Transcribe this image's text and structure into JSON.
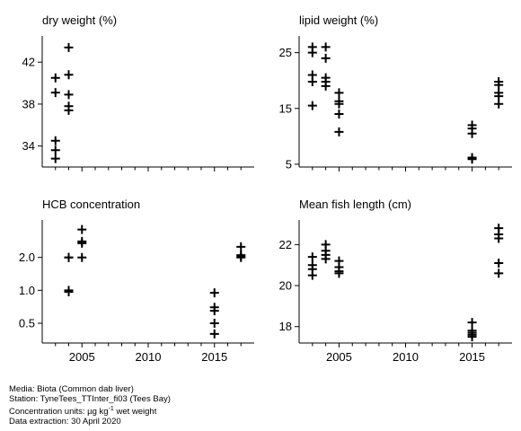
{
  "chart_data": [
    {
      "type": "scatter",
      "title": "dry weight (%)",
      "xlim": [
        2002,
        2018
      ],
      "ylim": [
        32,
        44.5
      ],
      "yticks": [
        34,
        38,
        42
      ],
      "ytick_labels": [
        "34",
        "38",
        "42"
      ],
      "xticks": [
        2005,
        2010,
        2015
      ],
      "xtick_labels": [],
      "points": [
        {
          "x": 2003,
          "y": 40.5
        },
        {
          "x": 2003,
          "y": 39.1
        },
        {
          "x": 2003,
          "y": 34.5
        },
        {
          "x": 2003,
          "y": 33.6
        },
        {
          "x": 2003,
          "y": 32.8
        },
        {
          "x": 2004,
          "y": 43.4
        },
        {
          "x": 2004,
          "y": 40.8
        },
        {
          "x": 2004,
          "y": 38.9
        },
        {
          "x": 2004,
          "y": 37.8
        },
        {
          "x": 2004,
          "y": 37.4
        }
      ]
    },
    {
      "type": "scatter",
      "title": "lipid weight (%)",
      "xlim": [
        2002,
        2018
      ],
      "ylim": [
        4.5,
        28
      ],
      "yticks": [
        5,
        15,
        25
      ],
      "ytick_labels": [
        "5",
        "15",
        "25"
      ],
      "xticks": [
        2005,
        2010,
        2015
      ],
      "xtick_labels": [],
      "points": [
        {
          "x": 2003,
          "y": 26
        },
        {
          "x": 2003,
          "y": 25
        },
        {
          "x": 2003,
          "y": 21
        },
        {
          "x": 2003,
          "y": 19.8
        },
        {
          "x": 2003,
          "y": 15.5
        },
        {
          "x": 2004,
          "y": 26
        },
        {
          "x": 2004,
          "y": 24
        },
        {
          "x": 2004,
          "y": 20.5
        },
        {
          "x": 2004,
          "y": 19.8
        },
        {
          "x": 2004,
          "y": 19
        },
        {
          "x": 2005,
          "y": 17.8
        },
        {
          "x": 2005,
          "y": 16.3
        },
        {
          "x": 2005,
          "y": 15.8
        },
        {
          "x": 2005,
          "y": 14
        },
        {
          "x": 2005,
          "y": 10.8
        },
        {
          "x": 2015,
          "y": 12
        },
        {
          "x": 2015,
          "y": 11.4
        },
        {
          "x": 2015,
          "y": 10.5
        },
        {
          "x": 2015,
          "y": 6.2
        },
        {
          "x": 2015,
          "y": 5.9
        },
        {
          "x": 2017,
          "y": 19.8
        },
        {
          "x": 2017,
          "y": 19.2
        },
        {
          "x": 2017,
          "y": 17.8
        },
        {
          "x": 2017,
          "y": 17.2
        },
        {
          "x": 2017,
          "y": 15.8
        }
      ]
    },
    {
      "type": "scatter",
      "title": "HCB concentration",
      "xlim": [
        2002,
        2018
      ],
      "ylim": [
        0.33,
        4.4
      ],
      "yscale": "log",
      "yticks": [
        0.5,
        1.0,
        2.0
      ],
      "ytick_labels": [
        "0.5",
        "1.0",
        "2.0"
      ],
      "xticks": [
        2005,
        2010,
        2015
      ],
      "xtick_labels": [
        "2005",
        "2010",
        "2015"
      ],
      "points": [
        {
          "x": 2004,
          "y": 2.0
        },
        {
          "x": 2004,
          "y": 2.0
        },
        {
          "x": 2004,
          "y": 1.0
        },
        {
          "x": 2004,
          "y": 0.98
        },
        {
          "x": 2004,
          "y": 0.97
        },
        {
          "x": 2005,
          "y": 3.6
        },
        {
          "x": 2005,
          "y": 2.8
        },
        {
          "x": 2005,
          "y": 2.7
        },
        {
          "x": 2005,
          "y": 2.0
        },
        {
          "x": 2015,
          "y": 0.95
        },
        {
          "x": 2015,
          "y": 0.7
        },
        {
          "x": 2015,
          "y": 0.65
        },
        {
          "x": 2015,
          "y": 0.5
        },
        {
          "x": 2015,
          "y": 0.4
        },
        {
          "x": 2017,
          "y": 2.5
        },
        {
          "x": 2017,
          "y": 2.1
        },
        {
          "x": 2017,
          "y": 2.05
        },
        {
          "x": 2017,
          "y": 2.0
        }
      ]
    },
    {
      "type": "scatter",
      "title": "Mean fish length (cm)",
      "xlim": [
        2002,
        2018
      ],
      "ylim": [
        17.2,
        23.2
      ],
      "yticks": [
        18,
        20,
        22
      ],
      "ytick_labels": [
        "18",
        "20",
        "22"
      ],
      "xticks": [
        2005,
        2010,
        2015
      ],
      "xtick_labels": [
        "2005",
        "2010",
        "2015"
      ],
      "points": [
        {
          "x": 2003,
          "y": 21.4
        },
        {
          "x": 2003,
          "y": 21.0
        },
        {
          "x": 2003,
          "y": 20.8
        },
        {
          "x": 2003,
          "y": 20.5
        },
        {
          "x": 2004,
          "y": 22.0
        },
        {
          "x": 2004,
          "y": 21.7
        },
        {
          "x": 2004,
          "y": 21.5
        },
        {
          "x": 2004,
          "y": 21.3
        },
        {
          "x": 2005,
          "y": 21.2
        },
        {
          "x": 2005,
          "y": 20.9
        },
        {
          "x": 2005,
          "y": 20.7
        },
        {
          "x": 2005,
          "y": 20.6
        },
        {
          "x": 2015,
          "y": 18.2
        },
        {
          "x": 2015,
          "y": 17.8
        },
        {
          "x": 2015,
          "y": 17.7
        },
        {
          "x": 2015,
          "y": 17.6
        },
        {
          "x": 2015,
          "y": 17.5
        },
        {
          "x": 2017,
          "y": 22.8
        },
        {
          "x": 2017,
          "y": 22.5
        },
        {
          "x": 2017,
          "y": 22.3
        },
        {
          "x": 2017,
          "y": 21.1
        },
        {
          "x": 2017,
          "y": 20.6
        }
      ]
    }
  ],
  "footer": {
    "media": "Media: Biota (Common dab liver)",
    "station": "Station: TyneTees_TTInter_fi03 (Tees Bay)",
    "units_prefix": "Concentration units:  µg kg",
    "units_sup": "-1",
    "units_suffix": " wet weight",
    "extraction": "Data extraction: 30 April 2020"
  }
}
